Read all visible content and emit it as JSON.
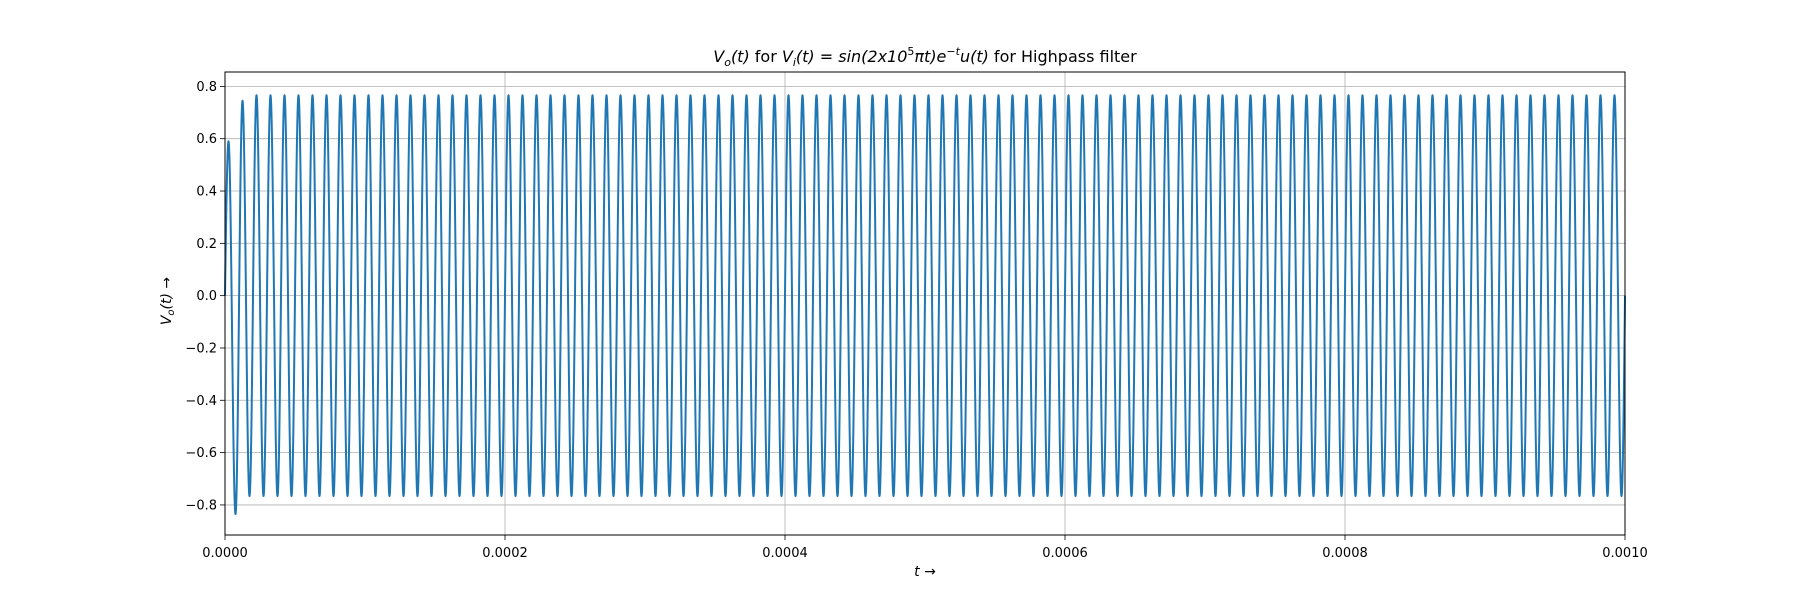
{
  "chart_data": {
    "type": "line",
    "title": {
      "vo": "V",
      "vo_sub": "o",
      "t_paren": "(t)",
      "for1": " for ",
      "vi": "V",
      "vi_sub": "i",
      "eq": "(t) = sin(2x10",
      "exp5": "5",
      "pi_part": "πt)e",
      "exp_t": "−t",
      "ut": "u(t)",
      "tail": " for Highpass filter"
    },
    "xlabel": "t →",
    "ylabel": "V",
    "ylabel_sub": "o",
    "ylabel_tail": "(t) →",
    "xlim": [
      0.0,
      0.001
    ],
    "ylim": [
      -0.915,
      0.855
    ],
    "xticks": [
      "0.0000",
      "0.0002",
      "0.0004",
      "0.0006",
      "0.0008",
      "0.0010"
    ],
    "xtick_values": [
      0.0,
      0.0002,
      0.0004,
      0.0006,
      0.0008,
      0.001
    ],
    "yticks": [
      "−0.8",
      "−0.6",
      "−0.4",
      "−0.2",
      "0.0",
      "0.2",
      "0.4",
      "0.6",
      "0.8"
    ],
    "ytick_values": [
      -0.8,
      -0.6,
      -0.4,
      -0.2,
      0.0,
      0.2,
      0.4,
      0.6,
      0.8
    ],
    "grid": true,
    "series": [
      {
        "color": "#1f77b4",
        "frequency_hz": 100000,
        "steady_amplitude": 0.766,
        "transient_first_peak": 0.59,
        "transient_first_trough": -0.835,
        "transient_second_peak": 0.745
      }
    ]
  }
}
